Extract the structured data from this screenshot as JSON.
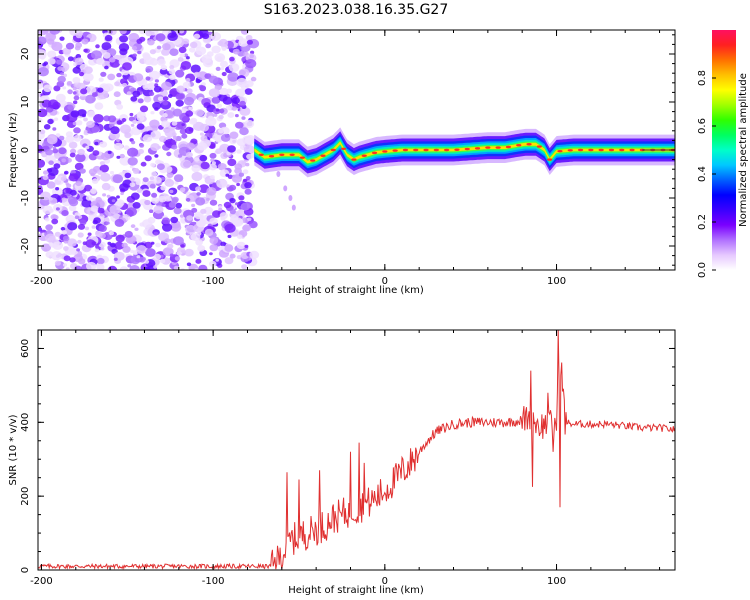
{
  "title": "S163.2023.038.16.35.G27",
  "colorbar": {
    "label": "Normalized spectral amplitude",
    "ticks": [
      "0.0",
      "0.2",
      "0.4",
      "0.6",
      "0.8"
    ],
    "tick_values": [
      0.0,
      0.2,
      0.4,
      0.6,
      0.8
    ],
    "range": [
      0,
      1
    ],
    "colors": [
      "#ffffff",
      "#e6c8ff",
      "#b070ff",
      "#7a00ff",
      "#3a00ff",
      "#0000ff",
      "#0060ff",
      "#00c8ff",
      "#00ffc8",
      "#00ff60",
      "#30ff00",
      "#a0ff00",
      "#ffff00",
      "#ffc000",
      "#ff7000",
      "#ff2020",
      "#ff1060"
    ]
  },
  "chart_data": [
    {
      "type": "heatmap",
      "title": "",
      "xlabel": "Height of straight line (km)",
      "ylabel": "Frequency (Hz)",
      "xlim": [
        -202,
        169
      ],
      "ylim": [
        -25,
        25
      ],
      "xticks": [
        -200,
        -100,
        0,
        100
      ],
      "yticks": [
        -20,
        -10,
        0,
        10,
        20
      ],
      "noise_region_x": [
        -202,
        -76
      ],
      "ridge": {
        "x": [
          -76,
          -70,
          -60,
          -50,
          -45,
          -40,
          -35,
          -30,
          -26,
          -22,
          -18,
          -15,
          -10,
          -5,
          0,
          10,
          20,
          40,
          60,
          70,
          78,
          82,
          88,
          93,
          96,
          100,
          110,
          120,
          140,
          169
        ],
        "y": [
          0,
          -1.5,
          -1,
          -1,
          -2.5,
          -2,
          -1,
          0,
          1.5,
          -1,
          -2,
          -1.5,
          -1,
          -0.5,
          -0.3,
          0,
          0,
          0,
          0.5,
          0.5,
          1.0,
          1.2,
          1.2,
          0,
          -2,
          -0.3,
          0,
          0,
          0,
          0
        ]
      }
    },
    {
      "type": "line",
      "title": "",
      "xlabel": "Height of straight line (km)",
      "ylabel": "SNR (10 * v/v)",
      "xlim": [
        -202,
        169
      ],
      "ylim": [
        0,
        650
      ],
      "xticks": [
        -200,
        -100,
        0,
        100
      ],
      "yticks": [
        0,
        200,
        400,
        600
      ],
      "color": "#e03030",
      "x": [
        -202,
        -150,
        -100,
        -80,
        -65,
        -60,
        -55,
        -50,
        -45,
        -40,
        -35,
        -30,
        -25,
        -20,
        -15,
        -10,
        -5,
        0,
        5,
        10,
        15,
        20,
        25,
        30,
        40,
        50,
        60,
        70,
        80,
        85,
        88,
        90,
        95,
        100,
        102,
        105,
        110,
        120,
        130,
        140,
        150,
        160,
        169
      ],
      "y": [
        10,
        10,
        10,
        10,
        10,
        40,
        80,
        90,
        100,
        110,
        120,
        140,
        150,
        160,
        170,
        180,
        195,
        215,
        240,
        265,
        290,
        320,
        350,
        375,
        395,
        400,
        400,
        400,
        405,
        420,
        400,
        390,
        395,
        395,
        600,
        400,
        395,
        395,
        395,
        390,
        385,
        385,
        380
      ],
      "spikes": [
        {
          "x": -57,
          "y": 265
        },
        {
          "x": -50,
          "y": 245
        },
        {
          "x": -38,
          "y": 270
        },
        {
          "x": -32,
          "y": 130
        },
        {
          "x": -20,
          "y": 320
        },
        {
          "x": -15,
          "y": 345
        },
        {
          "x": -12,
          "y": 290
        },
        {
          "x": 10,
          "y": 305
        },
        {
          "x": 85,
          "y": 540
        },
        {
          "x": 86,
          "y": 225
        },
        {
          "x": 101,
          "y": 650
        },
        {
          "x": 102,
          "y": 170
        },
        {
          "x": 95,
          "y": 480
        },
        {
          "x": 98,
          "y": 320
        }
      ]
    }
  ]
}
